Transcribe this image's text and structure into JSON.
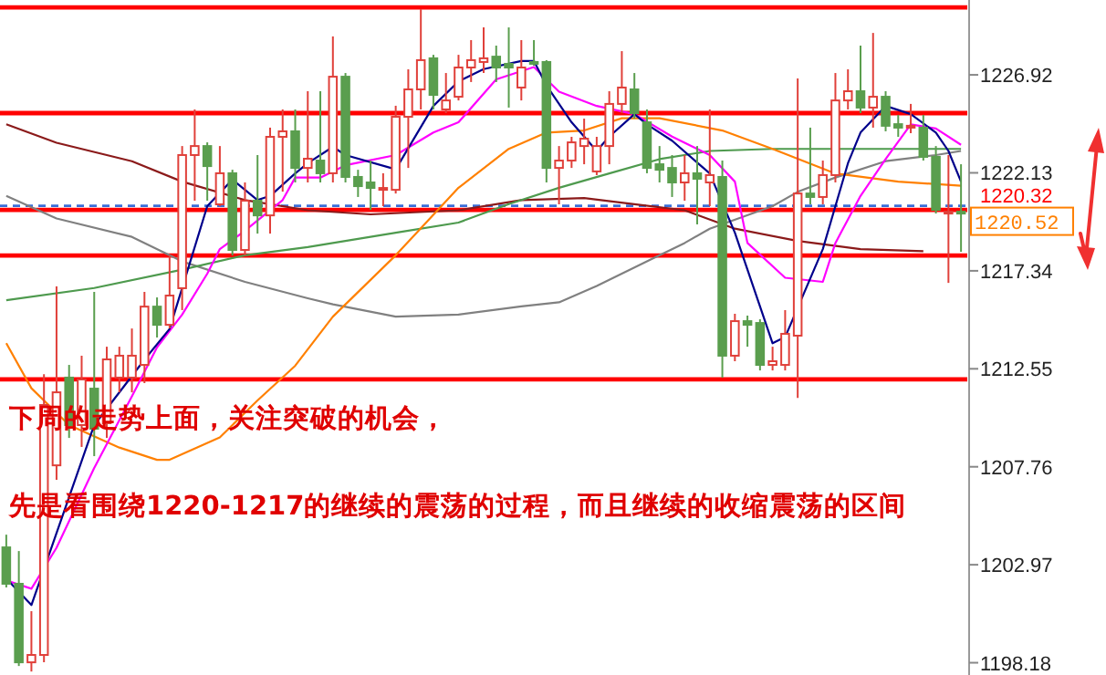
{
  "chart_data": {
    "type": "candlestick",
    "categories": [
      null,
      null,
      null,
      null,
      null,
      null,
      null,
      null,
      null,
      null,
      null,
      null,
      null,
      null,
      null,
      null,
      null,
      null,
      null,
      null,
      null,
      null,
      null,
      null,
      null,
      null,
      null,
      null,
      null,
      null,
      null,
      null,
      null,
      null,
      null,
      null,
      null,
      null,
      null,
      null,
      null,
      null,
      null,
      null,
      null,
      null,
      null,
      null,
      null,
      null,
      null,
      null,
      null,
      null,
      null,
      null,
      null,
      null,
      null,
      null,
      null,
      null,
      null,
      null,
      null,
      null,
      null,
      null,
      null,
      null,
      null,
      null,
      null,
      null,
      null,
      null,
      null
    ],
    "ohlc": [
      [
        1203.82,
        1204.44,
        1201.86,
        1202.04
      ],
      [
        1202.04,
        1203.64,
        1198.02,
        1198.2
      ],
      [
        1198.2,
        1200.7,
        1197.75,
        1198.56
      ],
      [
        1198.56,
        1212.29,
        1198.2,
        1210.78
      ],
      [
        1207.83,
        1216.58,
        1207.12,
        1211.4
      ],
      [
        1212.12,
        1212.74,
        1209.17,
        1209.8
      ],
      [
        1209.8,
        1213.19,
        1208.73,
        1212.03
      ],
      [
        1211.58,
        1216.31,
        1208.28,
        1209.62
      ],
      [
        1209.89,
        1213.63,
        1209.17,
        1213.01
      ],
      [
        1212.12,
        1213.63,
        1211.4,
        1213.19
      ],
      [
        1212.12,
        1214.52,
        1211.4,
        1213.19
      ],
      [
        1212.74,
        1216.31,
        1211.85,
        1215.59
      ],
      [
        1215.59,
        1216.04,
        1214.08,
        1214.7
      ],
      [
        1214.7,
        1218.09,
        1214.52,
        1216.13
      ],
      [
        1216.49,
        1223.44,
        1215.42,
        1223.0
      ],
      [
        1223.0,
        1225.23,
        1220.77,
        1223.44
      ],
      [
        1223.44,
        1223.62,
        1220.77,
        1222.46
      ],
      [
        1220.59,
        1223.44,
        1220.5,
        1222.11
      ],
      [
        1222.11,
        1222.28,
        1218.09,
        1218.36
      ],
      [
        1218.36,
        1221.66,
        1218.09,
        1220.77
      ],
      [
        1220.77,
        1223.0,
        1219.16,
        1220.05
      ],
      [
        1220.05,
        1224.34,
        1219.16,
        1223.89
      ],
      [
        1223.89,
        1225.23,
        1221.21,
        1224.16
      ],
      [
        1224.16,
        1225.23,
        1221.66,
        1222.37
      ],
      [
        1222.37,
        1226.12,
        1221.66,
        1222.82
      ],
      [
        1222.73,
        1226.12,
        1221.66,
        1222.11
      ],
      [
        1222.11,
        1228.8,
        1221.66,
        1226.83
      ],
      [
        1226.83,
        1227.01,
        1221.66,
        1221.93
      ],
      [
        1221.93,
        1222.28,
        1220.95,
        1221.48
      ],
      [
        1221.66,
        1222.73,
        1220.32,
        1221.39
      ],
      [
        1221.3,
        1222.11,
        1220.5,
        1221.39
      ],
      [
        1221.3,
        1225.41,
        1221.12,
        1224.87
      ],
      [
        1224.87,
        1227.19,
        1222.37,
        1226.21
      ],
      [
        1226.21,
        1230.13,
        1225.23,
        1227.64
      ],
      [
        1227.73,
        1227.9,
        1225.23,
        1225.94
      ],
      [
        1225.23,
        1227.01,
        1225.05,
        1225.67
      ],
      [
        1225.85,
        1227.9,
        1225.67,
        1227.28
      ],
      [
        1227.28,
        1228.62,
        1226.57,
        1227.64
      ],
      [
        1227.55,
        1229.24,
        1227.01,
        1227.73
      ],
      [
        1227.81,
        1228.35,
        1226.57,
        1227.28
      ],
      [
        1227.46,
        1229.24,
        1225.32,
        1227.28
      ],
      [
        1226.3,
        1228.62,
        1225.67,
        1227.28
      ],
      [
        1227.55,
        1228.62,
        1227.37,
        1227.46
      ],
      [
        1227.55,
        1227.64,
        1221.66,
        1222.37
      ],
      [
        1222.37,
        1223.44,
        1220.59,
        1222.73
      ],
      [
        1222.73,
        1223.89,
        1222.37,
        1223.62
      ],
      [
        1223.44,
        1224.78,
        1222.55,
        1223.8
      ],
      [
        1222.2,
        1223.89,
        1222.02,
        1223.44
      ],
      [
        1223.44,
        1226.12,
        1222.55,
        1225.5
      ],
      [
        1225.5,
        1228.08,
        1225.05,
        1226.3
      ],
      [
        1226.21,
        1227.01,
        1224.78,
        1225.05
      ],
      [
        1224.6,
        1225.23,
        1222.11,
        1222.37
      ],
      [
        1222.55,
        1223.44,
        1221.66,
        1222.28
      ],
      [
        1222.37,
        1223.0,
        1220.95,
        1221.66
      ],
      [
        1221.66,
        1223.0,
        1220.77,
        1222.11
      ],
      [
        1222.11,
        1223.44,
        1219.61,
        1221.84
      ],
      [
        1221.66,
        1225.23,
        1220.5,
        1222.02
      ],
      [
        1221.93,
        1222.73,
        1212.12,
        1213.19
      ],
      [
        1213.19,
        1215.24,
        1212.92,
        1214.88
      ],
      [
        1214.88,
        1215.15,
        1213.63,
        1214.7
      ],
      [
        1214.79,
        1214.97,
        1212.47,
        1212.74
      ],
      [
        1212.74,
        1213.63,
        1212.47,
        1212.92
      ],
      [
        1212.74,
        1215.42,
        1212.47,
        1214.26
      ],
      [
        1214.17,
        1226.74,
        1211.13,
        1221.12
      ],
      [
        1221.12,
        1224.34,
        1220.59,
        1220.95
      ],
      [
        1220.95,
        1222.73,
        1220.59,
        1222.02
      ],
      [
        1222.02,
        1227.01,
        1221.66,
        1225.67
      ],
      [
        1225.67,
        1227.19,
        1225.23,
        1226.12
      ],
      [
        1226.12,
        1228.35,
        1225.05,
        1225.32
      ],
      [
        1225.32,
        1228.97,
        1224.34,
        1225.85
      ],
      [
        1225.85,
        1226.12,
        1224.16,
        1224.43
      ],
      [
        1224.51,
        1224.96,
        1223.89,
        1224.34
      ],
      [
        1224.34,
        1225.5,
        1224.07,
        1224.43
      ],
      [
        1224.34,
        1224.96,
        1222.73,
        1222.91
      ],
      [
        1222.91,
        1223.44,
        1220.14,
        1220.32
      ],
      [
        1220.14,
        1223.0,
        1216.75,
        1220.23
      ],
      [
        1220.23,
        1222.55,
        1218.27,
        1220.14
      ]
    ],
    "series": [
      {
        "type": "line",
        "color": "#8b1a1a",
        "values": [
          1224.5,
          null,
          null,
          null,
          1223.6,
          null,
          null,
          null,
          null,
          null,
          1222.7,
          null,
          null,
          null,
          1221.7,
          null,
          null,
          null,
          null,
          1220.8,
          null,
          null,
          null,
          null,
          1220.3,
          null,
          null,
          null,
          null,
          1220.1,
          null,
          null,
          null,
          null,
          null,
          null,
          1220.3,
          null,
          null,
          null,
          null,
          1220.8,
          null,
          null,
          null,
          null,
          1220.9,
          null,
          null,
          null,
          1220.6,
          null,
          null,
          null,
          1220.3,
          null,
          null,
          null,
          1219.4,
          null,
          null,
          null,
          null,
          1218.8,
          null,
          null,
          null,
          null,
          1218.4,
          null,
          null,
          null,
          null,
          1218.3,
          null,
          null,
          null
        ]
      },
      {
        "type": "line",
        "color": "#808080",
        "values": [
          1221.0,
          null,
          null,
          null,
          1219.9,
          null,
          null,
          null,
          null,
          null,
          1219.0,
          null,
          null,
          null,
          1217.8,
          null,
          null,
          null,
          null,
          1216.8,
          null,
          null,
          null,
          null,
          1216.0,
          null,
          1215.7,
          null,
          null,
          null,
          null,
          1215.1,
          null,
          null,
          null,
          null,
          1215.2,
          null,
          null,
          null,
          null,
          1215.6,
          null,
          null,
          1215.8,
          null,
          null,
          1216.6,
          null,
          null,
          null,
          1217.8,
          null,
          null,
          1218.7,
          null,
          1219.4,
          null,
          null,
          null,
          null,
          1220.5,
          null,
          1221.2,
          null,
          null,
          1221.9,
          null,
          null,
          null,
          1222.7,
          null,
          null,
          null,
          1223.0,
          null,
          1223.2
        ]
      },
      {
        "type": "line",
        "color": "#4e9a4e",
        "values": [
          1215.9,
          null,
          null,
          null,
          null,
          null,
          null,
          1216.5,
          null,
          null,
          null,
          null,
          null,
          null,
          1217.4,
          null,
          null,
          null,
          null,
          1218.1,
          null,
          null,
          null,
          null,
          1218.5,
          null,
          null,
          null,
          null,
          null,
          null,
          1219.2,
          null,
          null,
          null,
          null,
          1219.7,
          null,
          null,
          null,
          1220.6,
          null,
          null,
          null,
          1221.4,
          null,
          null,
          null,
          1222.1,
          null,
          null,
          null,
          1222.8,
          null,
          null,
          null,
          1223.2,
          null,
          null,
          null,
          null,
          1223.3,
          null,
          null,
          null,
          null,
          null,
          null,
          1223.3,
          null,
          null,
          null,
          null,
          null,
          null,
          null,
          1223.3
        ]
      },
      {
        "type": "line",
        "color": "#ff8000",
        "values": [
          1213.8,
          null,
          1211.6,
          null,
          null,
          1209.8,
          null,
          null,
          null,
          1208.7,
          null,
          null,
          1208.1,
          1208.1,
          null,
          null,
          null,
          1209.2,
          null,
          null,
          1211.0,
          null,
          null,
          1212.7,
          null,
          null,
          1215.1,
          null,
          null,
          null,
          null,
          1218.1,
          null,
          null,
          null,
          null,
          1221.4,
          null,
          null,
          null,
          1223.3,
          null,
          null,
          1224.1,
          null,
          null,
          1224.2,
          null,
          null,
          1224.8,
          null,
          null,
          1224.8,
          null,
          null,
          null,
          null,
          1224.2,
          null,
          null,
          null,
          1223.3,
          null,
          null,
          null,
          null,
          1222.1,
          null,
          null,
          null,
          null,
          1221.7,
          null,
          null,
          null,
          null,
          1221.5
        ]
      },
      {
        "type": "line",
        "color": "#ff00ff",
        "values": [
          1202.2,
          null,
          1201.8,
          null,
          1203.8,
          null,
          null,
          1207.7,
          null,
          null,
          1211.2,
          null,
          1213.6,
          null,
          1215.2,
          null,
          1217.2,
          1218.4,
          null,
          1219.3,
          null,
          null,
          1220.8,
          1221.9,
          null,
          1221.9,
          null,
          1222.5,
          null,
          null,
          null,
          1223.0,
          null,
          null,
          1224.1,
          null,
          1224.6,
          null,
          null,
          1226.7,
          null,
          null,
          1227.3,
          null,
          1226.1,
          null,
          null,
          1225.4,
          null,
          null,
          1225.0,
          null,
          null,
          1223.9,
          null,
          null,
          1223.0,
          null,
          1221.7,
          1218.7,
          null,
          null,
          1217.0,
          null,
          null,
          1216.8,
          1218.7,
          null,
          1221.0,
          null,
          1222.8,
          null,
          1224.5,
          null,
          1224.3,
          null,
          1223.5
        ]
      },
      {
        "type": "line",
        "color": "#00008b",
        "values": [
          1202.3,
          null,
          1201.0,
          null,
          null,
          null,
          null,
          1209.8,
          null,
          null,
          null,
          1213.0,
          null,
          1214.5,
          null,
          null,
          1220.5,
          null,
          1221.8,
          null,
          1220.8,
          1221.0,
          null,
          1222.1,
          1222.6,
          null,
          1223.4,
          1223.0,
          null,
          null,
          null,
          1222.3,
          null,
          null,
          1225.4,
          null,
          1226.6,
          null,
          1227.2,
          null,
          null,
          1227.6,
          1227.6,
          1226.4,
          null,
          1224.6,
          null,
          1223.2,
          1223.9,
          null,
          1225.0,
          1224.5,
          null,
          1223.7,
          null,
          null,
          1222.1,
          null,
          1219.2,
          null,
          null,
          1213.8,
          1214.1,
          null,
          null,
          1218.4,
          null,
          1222.6,
          1224.1,
          null,
          1225.4,
          null,
          1225.0,
          null,
          1224.1,
          1223.2,
          1221.7
        ]
      }
    ],
    "ylim": [
      1197.58,
      1230.58
    ],
    "yticks": [
      1198.18,
      1202.97,
      1207.76,
      1212.55,
      1217.34,
      1222.13,
      1226.92
    ],
    "ref_lines": [
      {
        "axis": "y",
        "value": 1230.22,
        "color": "#ff0000"
      },
      {
        "axis": "y",
        "value": 1225.05,
        "color": "#ff0000"
      },
      {
        "axis": "y",
        "value": 1220.52,
        "label": "1220.52",
        "color": "#3a6fd8",
        "line_style": "dashed"
      },
      {
        "axis": "y",
        "value": 1220.32,
        "label": "1220.32",
        "color": "#ff0000"
      },
      {
        "axis": "y",
        "value": 1218.09,
        "color": "#ff0000"
      },
      {
        "axis": "y",
        "value": 1212.03,
        "color": "#ff0000"
      }
    ],
    "annotations": [
      "下周的走势上面，关注突破的机会，",
      "先是看围绕1220-1217的继续的震荡的过程，而且继续的收缩震荡的区间"
    ],
    "grid": false
  }
}
